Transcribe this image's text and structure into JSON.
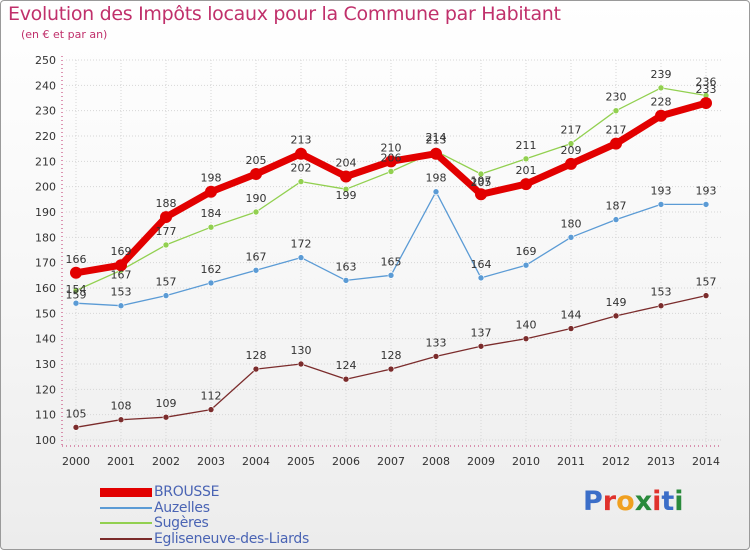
{
  "header": {
    "title": "Evolution des Impôts locaux pour la Commune par Habitant",
    "subtitle": "(en € et par an)"
  },
  "logo": {
    "text": "Proxiti",
    "colors": [
      "#3b6ec8",
      "#e0322c",
      "#f0a020",
      "#2a8a3c",
      "#e0322c",
      "#3b6ec8",
      "#2a8a3c"
    ]
  },
  "chart_data": {
    "type": "line",
    "title": "Evolution des Impôts locaux pour la Commune par Habitant",
    "subtitle": "(en € et par an)",
    "xlabel": "",
    "ylabel": "",
    "x": [
      2000,
      2001,
      2002,
      2003,
      2004,
      2005,
      2006,
      2007,
      2008,
      2009,
      2010,
      2011,
      2012,
      2013,
      2014
    ],
    "ylim": [
      100,
      250
    ],
    "yticks": [
      100,
      110,
      120,
      130,
      140,
      150,
      160,
      170,
      180,
      190,
      200,
      210,
      220,
      230,
      240,
      250
    ],
    "grid": true,
    "legend_position": "bottom-left",
    "series": [
      {
        "name": "BROUSSE",
        "color": "#e20000",
        "values": [
          166,
          169,
          188,
          198,
          205,
          213,
          204,
          210,
          213,
          197,
          201,
          209,
          217,
          228,
          233
        ],
        "labels": [
          "166",
          "169",
          "188",
          "198",
          "205",
          "213",
          "204",
          "210",
          "213",
          "197",
          "201",
          "209",
          "217",
          "228",
          "233"
        ]
      },
      {
        "name": "Auzelles",
        "color": "#5b9bd5",
        "values": [
          154,
          153,
          157,
          162,
          167,
          172,
          163,
          165,
          198,
          164,
          169,
          180,
          187,
          193,
          193
        ],
        "labels": [
          "154",
          "153",
          "157",
          "162",
          "167",
          "172",
          "163",
          "165",
          "198",
          "164",
          "169",
          "180",
          "187",
          "193",
          "193"
        ]
      },
      {
        "name": "Sugères",
        "color": "#92d050",
        "values": [
          159,
          167,
          177,
          184,
          190,
          202,
          199,
          206,
          214,
          205,
          211,
          217,
          230,
          239,
          236
        ],
        "labels": [
          "159",
          "167",
          "177",
          "184",
          "190",
          "202",
          "199",
          "206",
          "214",
          "205",
          "211",
          "217",
          "230",
          "239",
          "236"
        ]
      },
      {
        "name": "Egliseneuve-des-Liards",
        "color": "#7b2c2c",
        "values": [
          105,
          108,
          109,
          112,
          128,
          130,
          124,
          128,
          133,
          137,
          140,
          144,
          149,
          153,
          157
        ],
        "labels": [
          "105",
          "108",
          "109",
          "112",
          "128",
          "130",
          "124",
          "128",
          "133",
          "137",
          "140",
          "144",
          "149",
          "153",
          "157"
        ]
      }
    ]
  }
}
